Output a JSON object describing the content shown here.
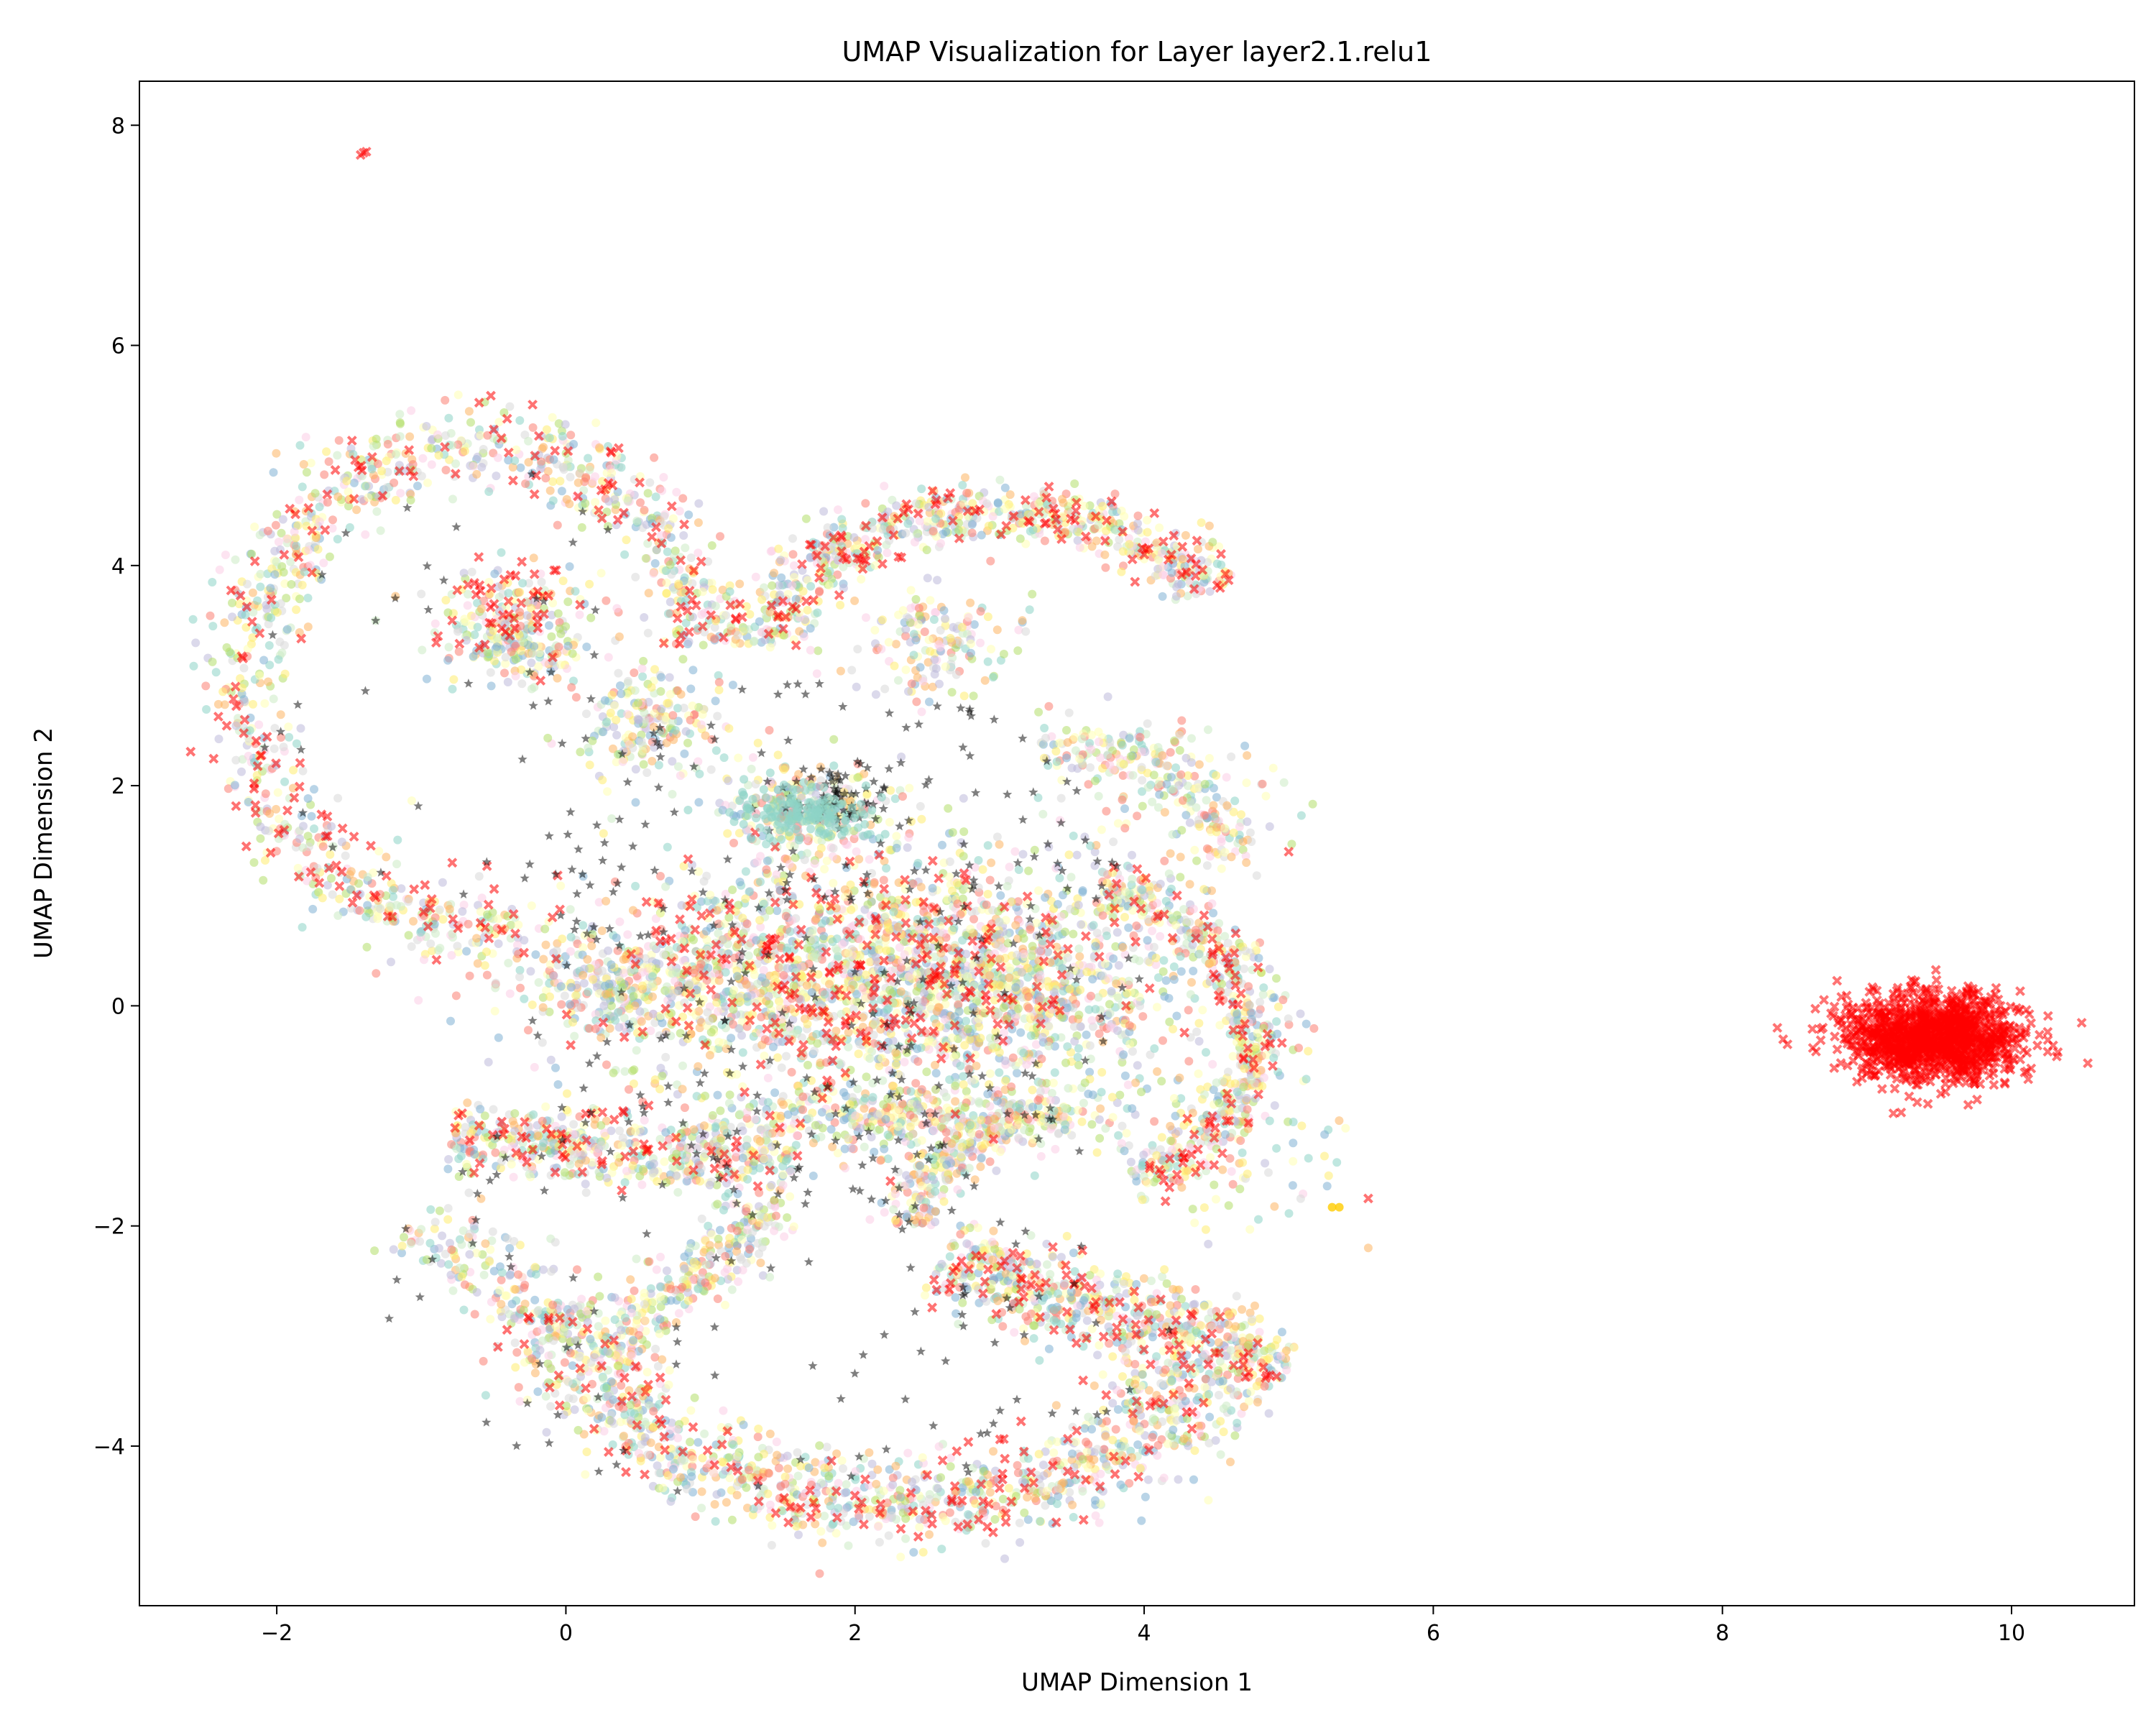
{
  "chart_data": {
    "type": "scatter",
    "title": "UMAP Visualization for Layer layer2.1.relu1",
    "xlabel": "UMAP Dimension 1",
    "ylabel": "UMAP Dimension 2",
    "xlim": [
      -2.95,
      10.85
    ],
    "ylim": [
      -5.45,
      8.4
    ],
    "xticks": [
      -2,
      0,
      2,
      4,
      6,
      8,
      10
    ],
    "yticks": [
      -4,
      -2,
      0,
      2,
      4,
      6,
      8
    ],
    "grid": false,
    "legend": "none",
    "colors": {
      "palette": [
        "#8dd3c7",
        "#ffffb3",
        "#bebada",
        "#fb8072",
        "#80b1d3",
        "#fdb462",
        "#b3de69",
        "#fccde5",
        "#d9d9d9",
        "#ccebc5",
        "#ffed6f"
      ],
      "red": "#ff0000",
      "black": "#000000",
      "gold": "#ffcc00"
    },
    "series": [
      {
        "marker": "circle",
        "color": "mixed-palette",
        "opacity": 0.55,
        "regions": [
          {
            "shape": "arc",
            "center": [
              -0.6,
              2.9
            ],
            "radius_x": 1.6,
            "radius_y": 2.2,
            "angle_from_deg": 10,
            "angle_to_deg": 280,
            "count": 950
          },
          {
            "shape": "blob",
            "center": [
              -0.35,
              3.4
            ],
            "radius_x": 0.6,
            "radius_y": 0.5,
            "count": 260
          },
          {
            "shape": "blob",
            "center": [
              0.6,
              2.6
            ],
            "radius_x": 0.5,
            "radius_y": 0.5,
            "count": 200
          },
          {
            "shape": "arc",
            "center": [
              3.0,
              3.0
            ],
            "radius_x": 1.7,
            "radius_y": 1.5,
            "angle_from_deg": 30,
            "angle_to_deg": 170,
            "count": 650
          },
          {
            "shape": "blob",
            "center": [
              2.5,
              3.3
            ],
            "radius_x": 0.5,
            "radius_y": 0.5,
            "count": 160
          },
          {
            "shape": "blob",
            "center": [
              2.0,
              0.3
            ],
            "radius_x": 1.8,
            "radius_y": 1.1,
            "count": 1500
          },
          {
            "shape": "blob",
            "center": [
              0.5,
              0.2
            ],
            "radius_x": 0.8,
            "radius_y": 0.45,
            "count": 320
          },
          {
            "shape": "blob",
            "center": [
              3.2,
              0.2
            ],
            "radius_x": 1.1,
            "radius_y": 0.9,
            "count": 550
          },
          {
            "shape": "blob",
            "center": [
              1.7,
              1.8
            ],
            "radius_x": 0.6,
            "radius_y": 0.4,
            "count": 280
          },
          {
            "shape": "arc",
            "center": [
              3.5,
              -0.3
            ],
            "radius_x": 1.25,
            "radius_y": 1.35,
            "angle_from_deg": -70,
            "angle_to_deg": 80,
            "count": 460
          },
          {
            "shape": "arc",
            "center": [
              3.4,
              0.8
            ],
            "radius_x": 1.3,
            "radius_y": 1.6,
            "angle_from_deg": 20,
            "angle_to_deg": 95,
            "count": 220
          },
          {
            "shape": "blob",
            "center": [
              2.4,
              -1.0
            ],
            "radius_x": 1.4,
            "radius_y": 0.35,
            "count": 380
          },
          {
            "shape": "band",
            "from": [
              -0.8,
              -1.2
            ],
            "to": [
              1.6,
              -1.4
            ],
            "width": 0.4,
            "count": 480
          },
          {
            "shape": "band",
            "from": [
              0.2,
              -3.2
            ],
            "to": [
              1.5,
              -1.8
            ],
            "width": 0.35,
            "count": 280
          },
          {
            "shape": "arc",
            "center": [
              2.3,
              -2.1
            ],
            "radius_x": 2.5,
            "radius_y": 2.45,
            "angle_from_deg": 195,
            "angle_to_deg": 330,
            "count": 1050
          },
          {
            "shape": "arc",
            "center": [
              3.7,
              -2.0
            ],
            "radius_x": 1.3,
            "radius_y": 1.05,
            "angle_from_deg": 100,
            "angle_to_deg": 180,
            "count": 260
          },
          {
            "shape": "band",
            "from": [
              2.6,
              -2.3
            ],
            "to": [
              5.0,
              -3.3
            ],
            "width": 0.5,
            "count": 620
          },
          {
            "shape": "band",
            "from": [
              -1.0,
              -1.9
            ],
            "to": [
              0.0,
              -3.0
            ],
            "width": 0.5,
            "count": 160
          },
          {
            "shape": "scatter",
            "center": [
              4.6,
              -1.0
            ],
            "radius_x": 0.8,
            "radius_y": 1.2,
            "count": 110
          },
          {
            "shape": "scatter",
            "center": [
              4.2,
              1.8
            ],
            "radius_x": 1.0,
            "radius_y": 0.8,
            "count": 90
          }
        ],
        "outliers": [
          [
            5.55,
            -2.2
          ]
        ]
      },
      {
        "marker": "x",
        "color": "#ff0000",
        "opacity": 0.55,
        "regions": [
          {
            "shape": "ellipse",
            "center": [
              9.45,
              -0.28
            ],
            "radius_x": 0.6,
            "radius_y": 0.38,
            "count": 1300
          },
          {
            "shape": "arc",
            "center": [
              -0.6,
              2.9
            ],
            "radius_x": 1.6,
            "radius_y": 2.2,
            "angle_from_deg": 10,
            "angle_to_deg": 280,
            "count": 150
          },
          {
            "shape": "blob",
            "center": [
              -0.4,
              3.6
            ],
            "radius_x": 0.5,
            "radius_y": 0.4,
            "count": 45
          },
          {
            "shape": "arc",
            "center": [
              3.0,
              3.0
            ],
            "radius_x": 1.7,
            "radius_y": 1.5,
            "angle_from_deg": 30,
            "angle_to_deg": 170,
            "count": 110
          },
          {
            "shape": "blob",
            "center": [
              2.0,
              0.3
            ],
            "radius_x": 1.8,
            "radius_y": 1.1,
            "count": 240
          },
          {
            "shape": "arc",
            "center": [
              3.5,
              -0.3
            ],
            "radius_x": 1.25,
            "radius_y": 1.35,
            "angle_from_deg": -70,
            "angle_to_deg": 80,
            "count": 80
          },
          {
            "shape": "band",
            "from": [
              -0.8,
              -1.2
            ],
            "to": [
              1.6,
              -1.4
            ],
            "width": 0.4,
            "count": 60
          },
          {
            "shape": "arc",
            "center": [
              2.3,
              -2.1
            ],
            "radius_x": 2.5,
            "radius_y": 2.45,
            "angle_from_deg": 195,
            "angle_to_deg": 330,
            "count": 130
          },
          {
            "shape": "band",
            "from": [
              2.6,
              -2.3
            ],
            "to": [
              5.0,
              -3.3
            ],
            "width": 0.5,
            "count": 90
          }
        ],
        "outliers": [
          [
            -1.4,
            7.75
          ],
          [
            -1.42,
            7.73
          ],
          [
            -1.38,
            7.76
          ],
          [
            -0.6,
            5.48
          ],
          [
            8.38,
            -0.2
          ],
          [
            8.45,
            -0.35
          ],
          [
            10.1,
            -0.22
          ],
          [
            9.7,
            -0.9
          ],
          [
            5.55,
            -1.75
          ],
          [
            5.0,
            1.4
          ],
          [
            4.0,
            4.1
          ]
        ]
      },
      {
        "marker": "star",
        "color": "#000000",
        "opacity": 0.5,
        "regions": [
          {
            "shape": "blob",
            "center": [
              1.9,
              1.9
            ],
            "radius_x": 0.35,
            "radius_y": 0.3,
            "count": 60
          },
          {
            "shape": "scatter",
            "center": [
              1.8,
              0.5
            ],
            "radius_x": 2.2,
            "radius_y": 2.5,
            "count": 260
          },
          {
            "shape": "scatter",
            "center": [
              1.5,
              -2.5
            ],
            "radius_x": 2.8,
            "radius_y": 2.0,
            "count": 120
          },
          {
            "shape": "scatter",
            "center": [
              -0.7,
              3.0
            ],
            "radius_x": 1.5,
            "radius_y": 2.0,
            "count": 40
          }
        ],
        "outliers": []
      },
      {
        "marker": "circle",
        "color": "#8dd3c7",
        "opacity": 0.6,
        "regions": [
          {
            "shape": "blob",
            "center": [
              1.65,
              1.75
            ],
            "radius_x": 0.45,
            "radius_y": 0.3,
            "count": 150
          }
        ],
        "outliers": []
      },
      {
        "marker": "circle",
        "color": "#ffcc00",
        "opacity": 0.8,
        "regions": [],
        "outliers": [
          [
            5.35,
            -1.83
          ],
          [
            5.3,
            -1.83
          ]
        ]
      }
    ]
  }
}
